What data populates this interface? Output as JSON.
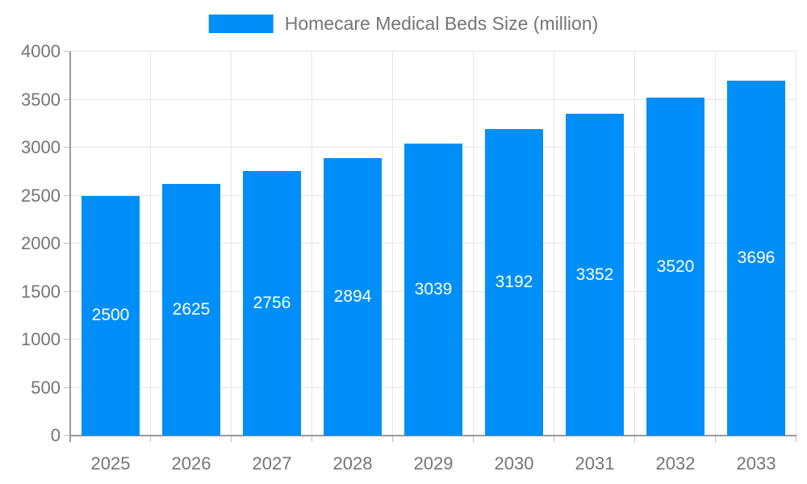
{
  "chart_data": {
    "type": "bar",
    "title": "Homecare Medical Beds Size (million)",
    "categories": [
      "2025",
      "2026",
      "2027",
      "2028",
      "2029",
      "2030",
      "2031",
      "2032",
      "2033"
    ],
    "series": [
      {
        "name": "Homecare Medical Beds Size (million)",
        "values": [
          2500,
          2625,
          2756,
          2894,
          3039,
          3192,
          3352,
          3520,
          3696
        ]
      }
    ],
    "xlabel": "",
    "ylabel": "",
    "ylim": [
      0,
      4000
    ],
    "ytick_step": 500,
    "ytick_labels": [
      "0",
      "500",
      "1000",
      "1500",
      "2000",
      "2500",
      "3000",
      "3500",
      "4000"
    ],
    "grid": true,
    "legend_position": "top-center",
    "bar_labels_inside": true,
    "colors": {
      "bar": "#008ff8",
      "bar_label": "#ffffff",
      "axis_text": "#757575",
      "grid_line": "#e6e6e6",
      "axis_line": "#9a9a9a",
      "tick": "#c0c0c0",
      "background": "#ffffff"
    }
  }
}
